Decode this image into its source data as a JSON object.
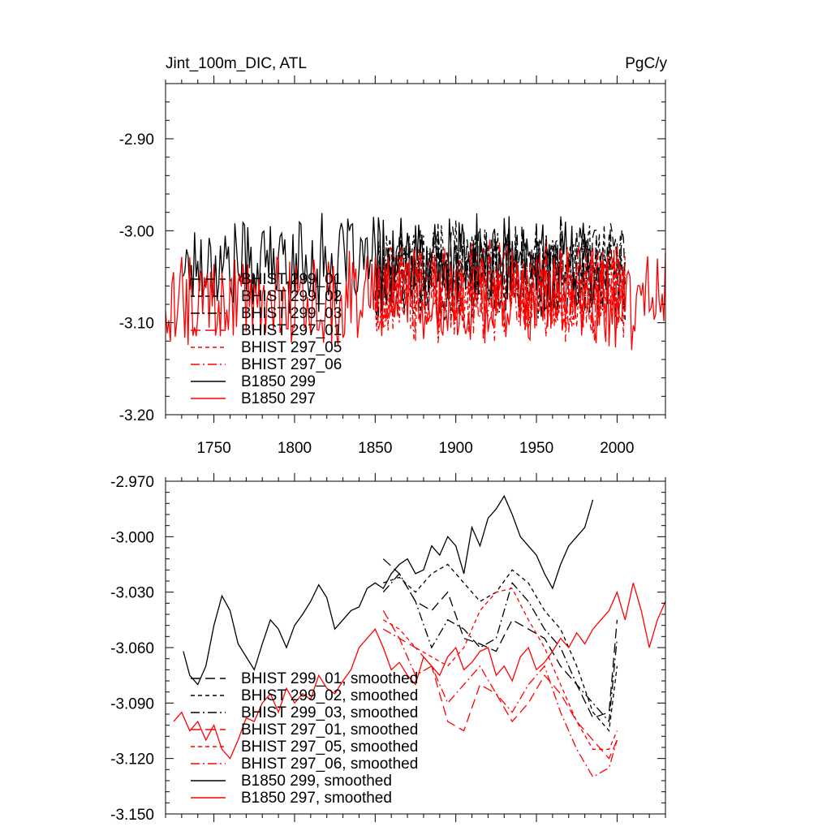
{
  "chart_data": [
    {
      "type": "line",
      "title": "Jint_100m_DIC, ATL",
      "title_right": "PgC/y",
      "xlim": [
        1720,
        2030
      ],
      "ylim": [
        -3.2,
        -2.84
      ],
      "x_ticks": [
        1750,
        1800,
        1850,
        1900,
        1950,
        2000
      ],
      "x_tick_labels": [
        "1750",
        "1800",
        "1850",
        "1900",
        "1950",
        "2000"
      ],
      "y_ticks": [
        -2.9,
        -3.0,
        -3.1,
        -3.2
      ],
      "y_tick_labels": [
        "-2.90",
        "-3.00",
        "-3.10",
        "-3.20"
      ],
      "legend_position": "bottom-left",
      "series": [
        {
          "name": "BHIST 299_01",
          "color": "#000000",
          "dash": "long-dash",
          "x_start": 1850,
          "x_end": 2005,
          "mean": -3.04,
          "amp": 0.045,
          "seed": 11
        },
        {
          "name": "BHIST 299_02",
          "color": "#000000",
          "dash": "short-dash",
          "x_start": 1850,
          "x_end": 2005,
          "mean": -3.045,
          "amp": 0.045,
          "seed": 12
        },
        {
          "name": "BHIST 299_03",
          "color": "#000000",
          "dash": "dash-dot",
          "x_start": 1850,
          "x_end": 2005,
          "mean": -3.05,
          "amp": 0.045,
          "seed": 13
        },
        {
          "name": "BHIST 297_01",
          "color": "#ff0000",
          "dash": "long-dash",
          "x_start": 1850,
          "x_end": 2005,
          "mean": -3.06,
          "amp": 0.045,
          "seed": 14
        },
        {
          "name": "BHIST 297_05",
          "color": "#ff0000",
          "dash": "short-dash",
          "x_start": 1850,
          "x_end": 2005,
          "mean": -3.065,
          "amp": 0.045,
          "seed": 15
        },
        {
          "name": "BHIST 297_06",
          "color": "#ff0000",
          "dash": "dash-dot",
          "x_start": 1850,
          "x_end": 2005,
          "mean": -3.07,
          "amp": 0.045,
          "seed": 16
        },
        {
          "name": "B1850 299",
          "color": "#000000",
          "dash": "solid",
          "x_start": 1731,
          "x_end": 1990,
          "mean": -3.035,
          "amp": 0.045,
          "seed": 17
        },
        {
          "name": "B1850 297",
          "color": "#ff0000",
          "dash": "solid",
          "x_start": 1720,
          "x_end": 2030,
          "mean": -3.075,
          "amp": 0.045,
          "seed": 18
        }
      ]
    },
    {
      "type": "line",
      "xlim": [
        1720,
        2030
      ],
      "ylim": [
        -3.15,
        -2.97
      ],
      "x_ticks": [
        1750,
        1800,
        1850,
        1900,
        1950,
        2000
      ],
      "y_ticks": [
        -2.97,
        -3.0,
        -3.03,
        -3.06,
        -3.09,
        -3.12,
        -3.15
      ],
      "y_tick_labels": [
        "-2.970",
        "-3.000",
        "-3.030",
        "-3.060",
        "-3.090",
        "-3.120",
        "-3.150"
      ],
      "legend_position": "bottom-left",
      "series": [
        {
          "name": "BHIST 299_01, smoothed",
          "color": "#000000",
          "dash": "long-dash",
          "x": [
            1855,
            1865,
            1875,
            1885,
            1895,
            1905,
            1915,
            1925,
            1935,
            1945,
            1955,
            1965,
            1975,
            1985,
            1995,
            2000
          ],
          "y": [
            -3.012,
            -3.02,
            -3.035,
            -3.04,
            -3.03,
            -3.055,
            -3.058,
            -3.062,
            -3.045,
            -3.05,
            -3.055,
            -3.07,
            -3.08,
            -3.098,
            -3.095,
            -3.045
          ]
        },
        {
          "name": "BHIST 299_02, smoothed",
          "color": "#000000",
          "dash": "short-dash",
          "x": [
            1855,
            1865,
            1875,
            1885,
            1895,
            1905,
            1915,
            1925,
            1935,
            1945,
            1955,
            1965,
            1975,
            1985,
            1995,
            2000
          ],
          "y": [
            -3.025,
            -3.022,
            -3.03,
            -3.02,
            -3.015,
            -3.025,
            -3.035,
            -3.03,
            -3.018,
            -3.025,
            -3.04,
            -3.05,
            -3.07,
            -3.095,
            -3.105,
            -3.07
          ]
        },
        {
          "name": "BHIST 299_03, smoothed",
          "color": "#000000",
          "dash": "dash-dot",
          "x": [
            1855,
            1865,
            1875,
            1885,
            1895,
            1905,
            1915,
            1925,
            1935,
            1945,
            1955,
            1965,
            1975,
            1985,
            1995,
            2000
          ],
          "y": [
            -3.03,
            -3.02,
            -3.035,
            -3.06,
            -3.045,
            -3.05,
            -3.06,
            -3.055,
            -3.025,
            -3.035,
            -3.05,
            -3.06,
            -3.08,
            -3.09,
            -3.1,
            -3.055
          ]
        },
        {
          "name": "BHIST 297_01, smoothed",
          "color": "#ff0000",
          "dash": "long-dash",
          "x": [
            1855,
            1865,
            1875,
            1885,
            1895,
            1905,
            1915,
            1925,
            1935,
            1945,
            1955,
            1965,
            1975,
            1985,
            1995,
            2000
          ],
          "y": [
            -3.04,
            -3.055,
            -3.06,
            -3.07,
            -3.1,
            -3.105,
            -3.08,
            -3.085,
            -3.1,
            -3.09,
            -3.075,
            -3.085,
            -3.1,
            -3.11,
            -3.12,
            -3.11
          ]
        },
        {
          "name": "BHIST 297_05, smoothed",
          "color": "#ff0000",
          "dash": "short-dash",
          "x": [
            1855,
            1865,
            1875,
            1885,
            1895,
            1905,
            1915,
            1925,
            1935,
            1945,
            1955,
            1965,
            1975,
            1985,
            1995,
            2000
          ],
          "y": [
            -3.045,
            -3.05,
            -3.06,
            -3.065,
            -3.07,
            -3.06,
            -3.04,
            -3.03,
            -3.028,
            -3.045,
            -3.06,
            -3.08,
            -3.1,
            -3.115,
            -3.115,
            -3.105
          ]
        },
        {
          "name": "BHIST 297_06, smoothed",
          "color": "#ff0000",
          "dash": "dash-dot",
          "x": [
            1855,
            1865,
            1875,
            1885,
            1895,
            1905,
            1915,
            1925,
            1935,
            1945,
            1955,
            1965,
            1975,
            1985,
            1995,
            2000
          ],
          "y": [
            -3.05,
            -3.055,
            -3.075,
            -3.07,
            -3.09,
            -3.08,
            -3.07,
            -3.085,
            -3.095,
            -3.08,
            -3.07,
            -3.095,
            -3.115,
            -3.13,
            -3.125,
            -3.11
          ]
        },
        {
          "name": "B1850 299, smoothed",
          "color": "#000000",
          "dash": "solid",
          "x": [
            1731,
            1735,
            1740,
            1745,
            1750,
            1755,
            1760,
            1765,
            1770,
            1775,
            1780,
            1785,
            1790,
            1795,
            1800,
            1805,
            1810,
            1815,
            1820,
            1825,
            1830,
            1835,
            1840,
            1845,
            1850,
            1855,
            1860,
            1865,
            1870,
            1875,
            1880,
            1885,
            1890,
            1895,
            1900,
            1905,
            1910,
            1915,
            1920,
            1925,
            1930,
            1935,
            1940,
            1945,
            1950,
            1955,
            1960,
            1965,
            1970,
            1975,
            1980,
            1985
          ],
          "y": [
            -3.062,
            -3.075,
            -3.08,
            -3.07,
            -3.048,
            -3.032,
            -3.04,
            -3.058,
            -3.065,
            -3.072,
            -3.058,
            -3.045,
            -3.05,
            -3.06,
            -3.048,
            -3.042,
            -3.035,
            -3.026,
            -3.033,
            -3.05,
            -3.045,
            -3.04,
            -3.038,
            -3.028,
            -3.025,
            -3.028,
            -3.02,
            -3.015,
            -3.012,
            -3.02,
            -3.018,
            -3.005,
            -3.01,
            -3.0,
            -3.005,
            -3.02,
            -2.995,
            -3.005,
            -2.99,
            -2.985,
            -2.978,
            -2.988,
            -3.0,
            -3.005,
            -3.01,
            -3.02,
            -3.028,
            -3.015,
            -3.005,
            -3.0,
            -2.995,
            -2.98
          ]
        },
        {
          "name": "B1850 297, smoothed",
          "color": "#ff0000",
          "dash": "solid",
          "x": [
            1725,
            1730,
            1735,
            1740,
            1745,
            1750,
            1755,
            1760,
            1765,
            1770,
            1775,
            1780,
            1785,
            1790,
            1795,
            1800,
            1805,
            1810,
            1815,
            1820,
            1825,
            1830,
            1835,
            1840,
            1845,
            1850,
            1855,
            1860,
            1865,
            1870,
            1875,
            1880,
            1885,
            1890,
            1895,
            1900,
            1905,
            1910,
            1915,
            1920,
            1925,
            1930,
            1935,
            1940,
            1945,
            1950,
            1955,
            1960,
            1965,
            1970,
            1975,
            1980,
            1985,
            1990,
            1995,
            2000,
            2005,
            2010,
            2015,
            2020,
            2025,
            2030
          ],
          "y": [
            -3.1,
            -3.095,
            -3.105,
            -3.1,
            -3.11,
            -3.102,
            -3.115,
            -3.12,
            -3.11,
            -3.098,
            -3.1,
            -3.09,
            -3.085,
            -3.095,
            -3.082,
            -3.09,
            -3.085,
            -3.088,
            -3.075,
            -3.082,
            -3.085,
            -3.078,
            -3.072,
            -3.06,
            -3.055,
            -3.05,
            -3.06,
            -3.072,
            -3.068,
            -3.075,
            -3.08,
            -3.065,
            -3.07,
            -3.075,
            -3.065,
            -3.06,
            -3.072,
            -3.068,
            -3.062,
            -3.06,
            -3.075,
            -3.07,
            -3.078,
            -3.065,
            -3.06,
            -3.072,
            -3.068,
            -3.062,
            -3.055,
            -3.06,
            -3.052,
            -3.058,
            -3.05,
            -3.045,
            -3.04,
            -3.03,
            -3.045,
            -3.025,
            -3.04,
            -3.06,
            -3.045,
            -3.035
          ]
        }
      ]
    }
  ]
}
